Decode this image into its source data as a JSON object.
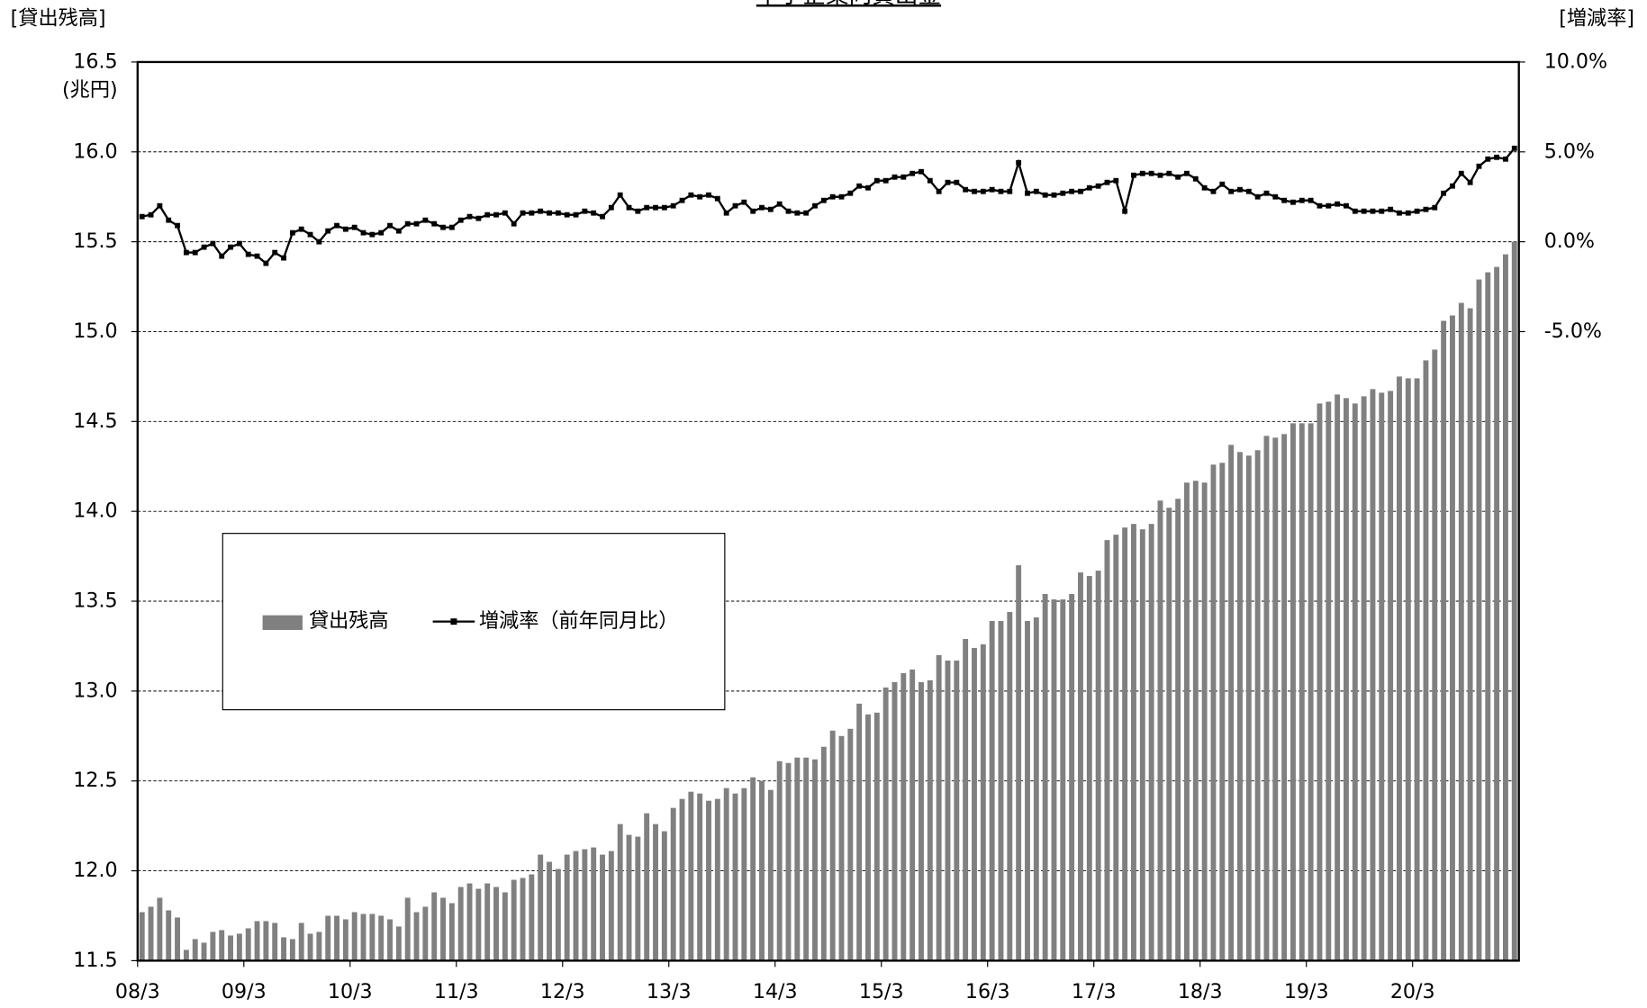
{
  "chart_data": {
    "type": "combo",
    "title": "中小企業向貸出金",
    "y_label": "[貸出残高]",
    "y_unit": "(兆円)",
    "y2_label": "[増減率]",
    "categories": [
      "08/3",
      null,
      null,
      null,
      null,
      null,
      null,
      null,
      null,
      null,
      null,
      null,
      "09/3",
      null,
      null,
      null,
      null,
      null,
      null,
      null,
      null,
      null,
      null,
      null,
      "10/3",
      null,
      null,
      null,
      null,
      null,
      null,
      null,
      null,
      null,
      null,
      null,
      "11/3",
      null,
      null,
      null,
      null,
      null,
      null,
      null,
      null,
      null,
      null,
      null,
      "12/3",
      null,
      null,
      null,
      null,
      null,
      null,
      null,
      null,
      null,
      null,
      null,
      "13/3",
      null,
      null,
      null,
      null,
      null,
      null,
      null,
      null,
      null,
      null,
      null,
      "14/3",
      null,
      null,
      null,
      null,
      null,
      null,
      null,
      null,
      null,
      null,
      null,
      "15/3",
      null,
      null,
      null,
      null,
      null,
      null,
      null,
      null,
      null,
      null,
      null,
      "16/3",
      null,
      null,
      null,
      null,
      null,
      null,
      null,
      null,
      null,
      null,
      null,
      "17/3",
      null,
      null,
      null,
      null,
      null,
      null,
      null,
      null,
      null,
      null,
      null,
      "18/3",
      null,
      null,
      null,
      null,
      null,
      null,
      null,
      null,
      null,
      null,
      null,
      "19/3",
      null,
      null,
      null,
      null,
      null,
      null,
      null,
      null,
      null,
      null,
      null,
      "20/3",
      null,
      null,
      null,
      null,
      null,
      null,
      null,
      null,
      null,
      null,
      null
    ],
    "series": [
      {
        "name": "貸出残高",
        "type": "bar",
        "color": "#808080",
        "values": [
          11.77,
          11.8,
          11.85,
          11.78,
          11.74,
          11.56,
          11.62,
          11.6,
          11.66,
          11.67,
          11.64,
          11.65,
          11.68,
          11.72,
          11.72,
          11.71,
          11.63,
          11.62,
          11.71,
          11.65,
          11.66,
          11.75,
          11.75,
          11.73,
          11.77,
          11.76,
          11.76,
          11.75,
          11.73,
          11.69,
          11.85,
          11.77,
          11.8,
          11.88,
          11.85,
          11.82,
          11.91,
          11.93,
          11.9,
          11.93,
          11.91,
          11.88,
          11.95,
          11.96,
          11.98,
          12.09,
          12.05,
          12.01,
          12.09,
          12.11,
          12.12,
          12.13,
          12.09,
          12.11,
          12.26,
          12.2,
          12.19,
          12.32,
          12.26,
          12.22,
          12.35,
          12.4,
          12.44,
          12.43,
          12.39,
          12.4,
          12.46,
          12.43,
          12.46,
          12.52,
          12.5,
          12.45,
          12.61,
          12.6,
          12.63,
          12.63,
          12.62,
          12.69,
          12.78,
          12.75,
          12.79,
          12.93,
          12.87,
          12.88,
          13.02,
          13.05,
          13.1,
          13.12,
          13.05,
          13.06,
          13.2,
          13.17,
          13.17,
          13.29,
          13.24,
          13.26,
          13.39,
          13.39,
          13.44,
          13.7,
          13.39,
          13.41,
          13.54,
          13.51,
          13.51,
          13.54,
          13.66,
          13.64,
          13.67,
          13.84,
          13.87,
          13.91,
          13.93,
          13.9,
          13.93,
          14.06,
          14.02,
          14.07,
          14.16,
          14.17,
          14.16,
          14.26,
          14.27,
          14.37,
          14.33,
          14.31,
          14.34,
          14.42,
          14.41,
          14.43,
          14.49,
          14.49,
          14.49,
          14.6,
          14.61,
          14.65,
          14.63,
          14.6,
          14.64,
          14.68,
          14.66,
          14.67,
          14.75,
          14.74,
          14.74,
          14.84,
          14.9,
          15.06,
          15.09,
          15.16,
          15.13,
          15.29,
          15.33,
          15.36,
          15.43,
          15.5
        ]
      },
      {
        "name": "増減率（前年同月比）",
        "type": "line",
        "axis": "y2",
        "color": "#000000",
        "values": [
          1.4,
          1.5,
          2.0,
          1.2,
          0.9,
          -0.6,
          -0.6,
          -0.3,
          -0.1,
          -0.8,
          -0.3,
          -0.1,
          -0.7,
          -0.8,
          -1.2,
          -0.6,
          -0.9,
          0.5,
          0.7,
          0.4,
          0.0,
          0.6,
          0.9,
          0.7,
          0.8,
          0.5,
          0.4,
          0.5,
          0.9,
          0.6,
          1.0,
          1.0,
          1.2,
          1.0,
          0.8,
          0.8,
          1.2,
          1.4,
          1.3,
          1.5,
          1.5,
          1.6,
          1.0,
          1.6,
          1.6,
          1.7,
          1.6,
          1.6,
          1.5,
          1.5,
          1.7,
          1.6,
          1.4,
          1.9,
          2.6,
          1.9,
          1.7,
          1.9,
          1.9,
          1.9,
          2.0,
          2.3,
          2.6,
          2.5,
          2.6,
          2.4,
          1.6,
          2.0,
          2.2,
          1.7,
          1.9,
          1.8,
          2.1,
          1.7,
          1.6,
          1.6,
          2.0,
          2.3,
          2.5,
          2.5,
          2.7,
          3.1,
          3.0,
          3.4,
          3.4,
          3.6,
          3.6,
          3.8,
          3.9,
          3.4,
          2.8,
          3.3,
          3.3,
          2.9,
          2.8,
          2.8,
          2.9,
          2.8,
          2.8,
          4.4,
          2.7,
          2.8,
          2.6,
          2.6,
          2.7,
          2.8,
          2.8,
          3.0,
          3.1,
          3.3,
          3.4,
          1.7,
          3.7,
          3.8,
          3.8,
          3.7,
          3.8,
          3.6,
          3.8,
          3.5,
          3.0,
          2.8,
          3.2,
          2.8,
          2.9,
          2.8,
          2.5,
          2.7,
          2.5,
          2.3,
          2.2,
          2.3,
          2.3,
          2.0,
          2.0,
          2.1,
          2.0,
          1.7,
          1.7,
          1.7,
          1.7,
          1.8,
          1.6,
          1.6,
          1.7,
          1.8,
          1.9,
          2.7,
          3.1,
          3.8,
          3.3,
          4.2,
          4.6,
          4.7,
          4.6,
          5.2
        ]
      }
    ],
    "ylim": [
      11.5,
      16.5
    ],
    "yticks": [
      11.5,
      {
        "value": 12,
        "label": "12.0"
      },
      12.5,
      {
        "value": 13,
        "label": "13.0"
      },
      13.5,
      {
        "value": 14,
        "label": "14.0"
      },
      14.5,
      {
        "value": 15,
        "label": "15.0"
      },
      15.5,
      {
        "value": 16,
        "label": "16.0"
      },
      16.5
    ],
    "y2lim": [
      -40,
      10
    ],
    "y2ticks": [
      {
        "value": -5,
        "label": "-5.0%"
      },
      {
        "value": 0,
        "label": "0.0%"
      },
      {
        "value": 5,
        "label": "5.0%"
      },
      {
        "value": 10,
        "label": "10.0%"
      }
    ],
    "grid": true
  }
}
